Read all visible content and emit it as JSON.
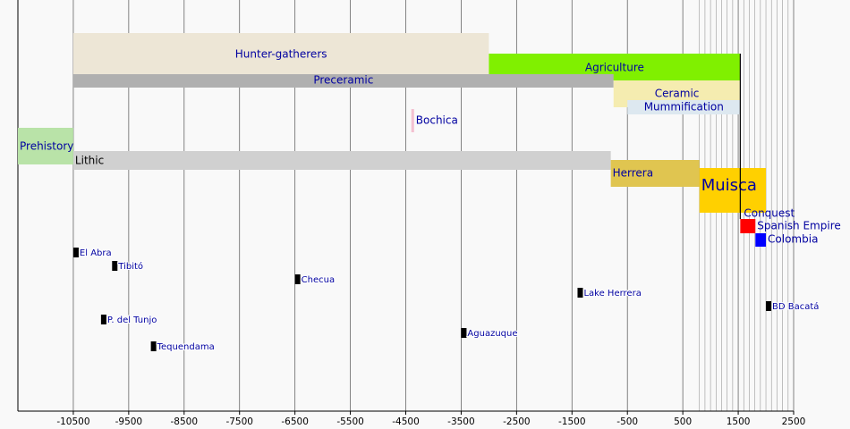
{
  "chart_data": {
    "type": "timeline",
    "xlim": [
      -11500,
      2500
    ],
    "xticks": [
      -10500,
      -9500,
      -8500,
      -7500,
      -6500,
      -5500,
      -4500,
      -3500,
      -2500,
      -1500,
      -500,
      500,
      1500,
      2500
    ],
    "minor_xticks": [
      800,
      900,
      1000,
      1100,
      1200,
      1300,
      1400,
      1600,
      1700,
      1800,
      1900,
      2000,
      2100,
      2200,
      2300,
      2400
    ],
    "grid": true,
    "periods": [
      {
        "name": "Hunter-gatherers",
        "start": -10500,
        "end": -3000,
        "color": "#ede6d6"
      },
      {
        "name": "Agriculture",
        "start": -3000,
        "end": 1537,
        "color": "#80f000"
      },
      {
        "name": "Preceramic",
        "start": -10500,
        "end": -750,
        "color": "#b0b0b0"
      },
      {
        "name": "Ceramic",
        "start": -750,
        "end": 1537,
        "color": "#f5ecb0"
      },
      {
        "name": "Mummification",
        "start": -500,
        "end": 1537,
        "color": "#dde8f0"
      },
      {
        "name": "Bochica",
        "start": -4400,
        "end": -4350,
        "color": "#f3c0d0"
      },
      {
        "name": "Prehistory",
        "start": -11500,
        "end": -10500,
        "color": "#b9e3a8"
      },
      {
        "name": "Lithic",
        "start": -10500,
        "end": -800,
        "color": "#d0d0d0"
      },
      {
        "name": "Herrera",
        "start": -800,
        "end": 800,
        "color": "#e0c550"
      },
      {
        "name": "Muisca",
        "start": 800,
        "end": 2000,
        "color": "#ffd000"
      },
      {
        "name": "Conquest",
        "start": 1537,
        "end": 1537,
        "color": "#000000"
      },
      {
        "name": "Spanish Empire",
        "start": 1537,
        "end": 1810,
        "color": "#ff0000"
      },
      {
        "name": "Colombia",
        "start": 1810,
        "end": 2000,
        "color": "#0000ff"
      }
    ],
    "events": [
      {
        "name": "El Abra",
        "year": -10500
      },
      {
        "name": "Tibitó",
        "year": -9800
      },
      {
        "name": "Checua",
        "year": -6500
      },
      {
        "name": "Lake Herrera",
        "year": -1400
      },
      {
        "name": "BD Bacatá",
        "year": 2000
      },
      {
        "name": "P. del Tunjo",
        "year": -10000
      },
      {
        "name": "Aguazuque",
        "year": -3500
      },
      {
        "name": "Tequendama",
        "year": -9100
      }
    ],
    "event_color": "#000000"
  }
}
